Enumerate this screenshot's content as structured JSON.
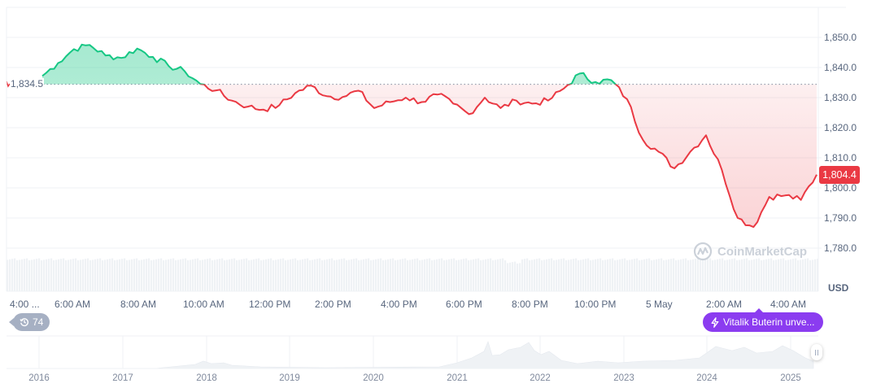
{
  "chart_data": {
    "type": "line",
    "title": "",
    "currency": "USD",
    "xlabel": "",
    "ylabel": "USD",
    "ylim": [
      1775,
      1860
    ],
    "y_ticks": [
      "1,850.0",
      "1,840.0",
      "1,830.0",
      "1,820.0",
      "1,810.0",
      "1,800.0",
      "1,790.0",
      "1,780.0"
    ],
    "x_ticks": [
      "4:00 ...",
      "6:00 AM",
      "8:00 AM",
      "10:00 AM",
      "12:00 PM",
      "2:00 PM",
      "4:00 PM",
      "6:00 PM",
      "8:00 PM",
      "10:00 PM",
      "5 May",
      "2:00 AM",
      "4:00 AM"
    ],
    "baseline": 1834.5,
    "baseline_label": "1,834.5",
    "current_price": 1804.4,
    "current_price_label": "1,804.4",
    "grid": true,
    "colors": {
      "up": "#16c784",
      "down": "#ea3943",
      "up_fill": "#b6ecd3",
      "down_fill": "#fde4e5",
      "volume": "#eff2f5"
    },
    "series": [
      {
        "name": "Price",
        "x": [
          "04:00",
          "04:30",
          "05:00",
          "05:30",
          "06:00",
          "06:30",
          "07:00",
          "07:30",
          "08:00",
          "08:30",
          "09:00",
          "09:30",
          "10:00",
          "10:30",
          "11:00",
          "11:30",
          "12:00",
          "12:30",
          "13:00",
          "13:30",
          "14:00",
          "14:30",
          "15:00",
          "15:30",
          "16:00",
          "16:30",
          "17:00",
          "17:30",
          "18:00",
          "18:30",
          "19:00",
          "19:30",
          "20:00",
          "20:30",
          "21:00",
          "21:30",
          "22:00",
          "22:30",
          "23:00",
          "23:30",
          "00:00",
          "00:30",
          "01:00",
          "01:30",
          "02:00",
          "02:30",
          "03:00",
          "03:30",
          "04:00",
          "04:30"
        ],
        "values": [
          1837.2,
          1841.5,
          1846.1,
          1847.5,
          1844.0,
          1843.2,
          1846.3,
          1843.5,
          1840.5,
          1838.8,
          1834.5,
          1832.4,
          1829.0,
          1827.0,
          1826.0,
          1827.5,
          1831.5,
          1834.0,
          1830.5,
          1830.2,
          1832.3,
          1826.5,
          1828.5,
          1830.0,
          1828.5,
          1831.0,
          1828.0,
          1824.5,
          1830.0,
          1826.5,
          1829.0,
          1828.0,
          1829.0,
          1833.0,
          1838.0,
          1835.2,
          1835.8,
          1829.5,
          1816.0,
          1812.0,
          1806.5,
          1812.0,
          1817.5,
          1806.0,
          1790.0,
          1787.0,
          1797.0,
          1797.5,
          1796.0,
          1804.4
        ]
      },
      {
        "name": "Volume",
        "values": []
      }
    ]
  },
  "labels": {
    "usd": "USD",
    "history_count": "74",
    "news_headline": "Vitalik Buterin unve...",
    "watermark": "CoinMarketCap"
  },
  "navigator": {
    "years": [
      "2016",
      "2017",
      "2018",
      "2019",
      "2020",
      "2021",
      "2022",
      "2023",
      "2024",
      "2025"
    ]
  },
  "icons": {
    "history": "history-clock-icon",
    "news": "lightning-bolt-icon",
    "brand": "coinmarketcap-logo-icon",
    "handle": "range-handle-icon"
  }
}
